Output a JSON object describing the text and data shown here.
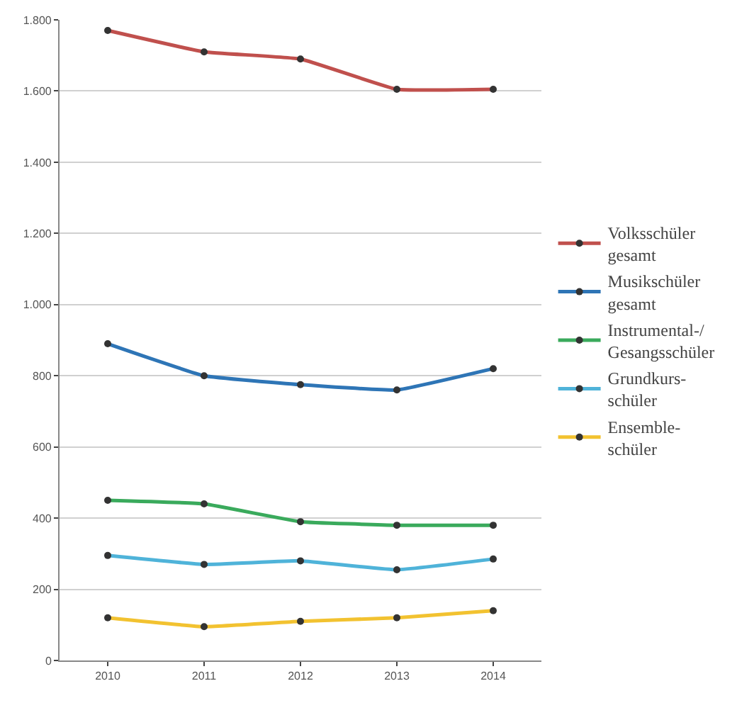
{
  "chart_data": {
    "type": "line",
    "categories": [
      "2010",
      "2011",
      "2012",
      "2013",
      "2014"
    ],
    "series": [
      {
        "name": "Volksschüler\ngesamt",
        "color": "#c0504d",
        "values": [
          1770,
          1710,
          1690,
          1605,
          1605
        ]
      },
      {
        "name": "Musikschüler\ngesamt",
        "color": "#2e75b6",
        "values": [
          890,
          800,
          775,
          760,
          820
        ]
      },
      {
        "name": "Instrumental-/\nGesangsschüler",
        "color": "#3aaa5c",
        "values": [
          450,
          440,
          390,
          380,
          380
        ]
      },
      {
        "name": "Grundkurs-\nschüler",
        "color": "#4fb3d9",
        "values": [
          295,
          270,
          280,
          255,
          285
        ]
      },
      {
        "name": "Ensemble-\nschüler",
        "color": "#f2c230",
        "values": [
          120,
          95,
          110,
          120,
          140
        ]
      }
    ],
    "ylim": [
      0,
      1800
    ],
    "yticks": [
      0,
      200,
      400,
      600,
      800,
      {
        "value": 1000,
        "label": "1.000"
      },
      {
        "value": 1200,
        "label": "1.200"
      },
      {
        "value": 1400,
        "label": "1.400"
      },
      {
        "value": 1600,
        "label": "1.600"
      },
      {
        "value": 1800,
        "label": "1.800"
      }
    ],
    "grid": "y",
    "legend": "right",
    "marker": "circle",
    "line_style": "solid"
  }
}
